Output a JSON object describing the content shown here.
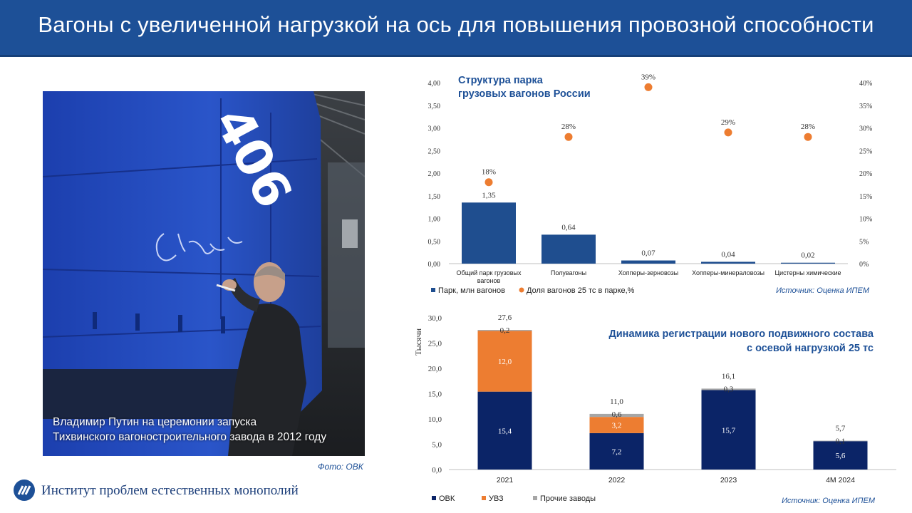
{
  "header": {
    "title": "Вагоны с увеличенной нагрузкой на ось для повышения провозной способности"
  },
  "photo": {
    "caption_line1": "Владимир Путин на церемонии запуска",
    "caption_line2": "Тихвинского вагоностроительного завода в 2012 году",
    "credit": "Фото: ОВК",
    "wagon_number": "406"
  },
  "footer": {
    "org_name": "Институт проблем естественных монополий"
  },
  "colors": {
    "header_bg": "#1d5097",
    "bar_blue": "#1f4e8f",
    "dot_orange": "#ed7d31",
    "ovk_navy": "#0b2467",
    "uvz_orange": "#ed7d31",
    "other_gray": "#a6a6a6",
    "title_blue": "#1d5097"
  },
  "chart_data": [
    {
      "type": "bar",
      "title_line1": "Структура парка",
      "title_line2": "грузовых вагонов России",
      "categories": [
        "Общий парк грузовых вагонов",
        "Полувагоны",
        "Хопперы-зерновозы",
        "Хопперы-минераловозы",
        "Цистерны химические"
      ],
      "category_labels": [
        [
          "Общий парк грузовых",
          "вагонов"
        ],
        [
          "Полувагоны"
        ],
        [
          "Хопперы-зерновозы"
        ],
        [
          "Хопперы-минераловозы"
        ],
        [
          "Цистерны химические"
        ]
      ],
      "series": [
        {
          "name": "Парк, млн вагонов",
          "kind": "bar",
          "values": [
            1.35,
            0.64,
            0.07,
            0.04,
            0.02
          ],
          "labels": [
            "1,35",
            "0,64",
            "0,07",
            "0,04",
            "0,02"
          ]
        },
        {
          "name": "Доля вагонов 25 тс в парке,%",
          "kind": "dot",
          "axis": "right",
          "values": [
            18,
            28,
            39,
            29,
            28
          ],
          "labels": [
            "18%",
            "28%",
            "39%",
            "29%",
            "28%"
          ]
        }
      ],
      "ylim": [
        0,
        4
      ],
      "y_ticks": [
        "0,00",
        "0,50",
        "1,00",
        "1,50",
        "2,00",
        "2,50",
        "3,00",
        "3,50",
        "4,00"
      ],
      "y2lim": [
        0,
        40
      ],
      "y2_ticks": [
        "0%",
        "5%",
        "10%",
        "15%",
        "20%",
        "25%",
        "30%",
        "35%",
        "40%"
      ],
      "legend_position": "bottom-left",
      "source": "Источник: Оценка ИПЕМ"
    },
    {
      "type": "bar",
      "stacked": true,
      "title_line1": "Динамика регистрации нового подвижного состава",
      "title_line2": "с осевой нагрузкой 25 тс",
      "ylabel": "Тысячи",
      "categories": [
        "2021",
        "2022",
        "2023",
        "4М 2024"
      ],
      "series": [
        {
          "name": "ОВК",
          "values": [
            15.4,
            7.2,
            15.7,
            5.6
          ],
          "labels": [
            "15,4",
            "7,2",
            "15,7",
            "5,6"
          ]
        },
        {
          "name": "УВЗ",
          "values": [
            12.0,
            3.2,
            0,
            0
          ],
          "labels": [
            "12,0",
            "3,2",
            "",
            ""
          ]
        },
        {
          "name": "Прочие заводы",
          "values": [
            0.2,
            0.6,
            0.3,
            0.1
          ],
          "labels": [
            "0,2",
            "0,6",
            "0,3",
            "0,1"
          ]
        }
      ],
      "totals": [
        "27,6",
        "11,0",
        "16,1",
        "5,7"
      ],
      "ylim": [
        0,
        30
      ],
      "y_ticks": [
        "0,0",
        "5,0",
        "10,0",
        "15,0",
        "20,0",
        "25,0",
        "30,0"
      ],
      "legend_position": "bottom-left",
      "source": "Источник: Оценка ИПЕМ"
    }
  ]
}
